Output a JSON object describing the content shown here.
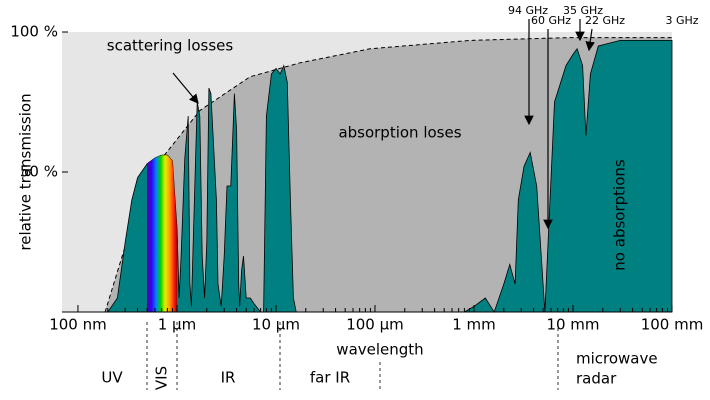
{
  "chart_data": {
    "type": "area",
    "x_label": "wavelength",
    "y_label": "relative transmission",
    "xscale": "log",
    "xlim": [
      69,
      100000000
    ],
    "ylim": [
      0,
      100
    ],
    "xticks": [
      {
        "value": 100,
        "label": "100 nm"
      },
      {
        "value": 1000,
        "label": "1 µm"
      },
      {
        "value": 10000,
        "label": "10 µm"
      },
      {
        "value": 100000,
        "label": "100 µm"
      },
      {
        "value": 1000000,
        "label": "1 mm"
      },
      {
        "value": 10000000,
        "label": "10 mm"
      },
      {
        "value": 100000000,
        "label": "100 mm"
      }
    ],
    "yticks": [
      {
        "value": 50,
        "label": "50 %"
      },
      {
        "value": 100,
        "label": "100 %"
      }
    ],
    "background_color": "#e6e6e6",
    "series": [
      {
        "color": "#b3b3b3",
        "x": [
          188,
          335,
          673,
          1710,
          5460,
          17500,
          89000,
          912000,
          9330000,
          100000000
        ],
        "values": [
          0,
          29,
          54,
          72,
          84,
          89,
          94,
          97,
          98,
          98
        ]
      },
      {
        "color": "#008080",
        "x": [
          200,
          250,
          300,
          350,
          400,
          500,
          600,
          700,
          800,
          900,
          1000,
          1050,
          1100,
          1200,
          1300,
          1350,
          1400,
          1500,
          1600,
          1700,
          1800,
          1900,
          2000,
          2100,
          2200,
          2500,
          2600,
          2800,
          3000,
          3200,
          3500,
          3800,
          4000,
          4200,
          4300,
          4500,
          4700,
          5000,
          5500,
          6000,
          7000,
          7500,
          8000,
          9000,
          10000,
          11000,
          12000,
          13000,
          14000,
          15000,
          16000,
          800000,
          1000000,
          1300000,
          1600000,
          2000000,
          2300000,
          2600000,
          2800000,
          3200000,
          3700000,
          4300000,
          5200000,
          6500000,
          8500000,
          10000000,
          11000000,
          12500000,
          13500000,
          15000000,
          18000000,
          30000000,
          50000000,
          100000000
        ],
        "values": [
          0,
          5,
          25,
          40,
          48,
          53,
          55,
          56,
          56,
          54,
          30,
          5,
          20,
          55,
          70,
          10,
          2,
          40,
          75,
          70,
          20,
          5,
          25,
          80,
          78,
          40,
          10,
          2,
          20,
          45,
          45,
          78,
          65,
          10,
          2,
          15,
          20,
          5,
          5,
          3,
          0,
          0,
          70,
          85,
          87,
          85,
          88,
          82,
          40,
          5,
          0,
          0,
          2,
          5,
          0,
          10,
          17,
          10,
          40,
          52,
          57,
          45,
          0,
          75,
          88,
          92,
          94,
          88,
          63,
          85,
          95,
          97,
          97,
          97
        ]
      }
    ],
    "annotations": [
      "scattering losses",
      "absorption loses",
      "no absorptions"
    ],
    "frequencies": [
      "94 GHz",
      "60 GHz",
      "35 GHz",
      "22 GHz",
      "3 GHz"
    ],
    "bands": [
      "UV",
      "VIS",
      "IR",
      "far IR",
      "microwave",
      "radar"
    ]
  }
}
